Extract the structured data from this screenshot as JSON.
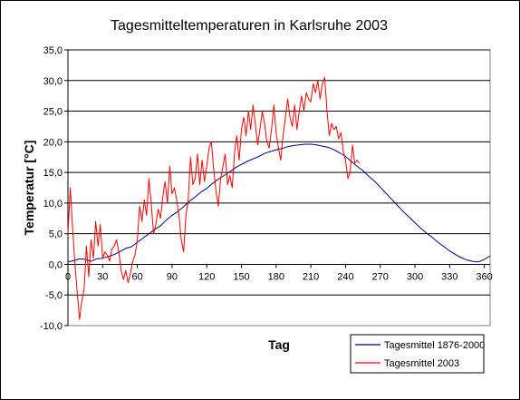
{
  "chart_data": {
    "type": "line",
    "title": "Tagesmitteltemperaturen in Karlsruhe 2003",
    "xlabel": "Tag",
    "ylabel": "Temperatur [°C]",
    "xlim": [
      0,
      365
    ],
    "ylim": [
      -10,
      35
    ],
    "x_ticks": [
      0,
      30,
      60,
      90,
      120,
      150,
      180,
      210,
      240,
      270,
      300,
      330,
      360
    ],
    "x_tick_labels": [
      "0",
      "30",
      "60",
      "90",
      "120",
      "150",
      "180",
      "210",
      "240",
      "270",
      "300",
      "330",
      "360"
    ],
    "y_ticks": [
      -10,
      -5,
      0,
      5,
      10,
      15,
      20,
      25,
      30,
      35
    ],
    "y_tick_labels": [
      "-10,0",
      "-5,0",
      "0,0",
      "5,0",
      "10,0",
      "15,0",
      "20,0",
      "25,0",
      "30,0",
      "35,0"
    ],
    "grid": "horizontal",
    "legend_position": "bottom-right",
    "series": [
      {
        "name": "Tagesmittel 1876-2000",
        "color": "#000080",
        "x": [
          0,
          5,
          10,
          15,
          20,
          25,
          30,
          35,
          40,
          45,
          50,
          55,
          60,
          65,
          70,
          75,
          80,
          85,
          90,
          95,
          100,
          105,
          110,
          115,
          120,
          125,
          130,
          135,
          140,
          145,
          150,
          155,
          160,
          165,
          170,
          175,
          180,
          185,
          190,
          195,
          200,
          205,
          210,
          215,
          220,
          225,
          230,
          235,
          240,
          245,
          250,
          255,
          260,
          265,
          270,
          275,
          280,
          285,
          290,
          295,
          300,
          305,
          310,
          315,
          320,
          325,
          330,
          335,
          340,
          345,
          350,
          355,
          360,
          365
        ],
        "y": [
          0.4,
          0.6,
          0.9,
          0.8,
          0.5,
          0.9,
          1.0,
          1.3,
          1.6,
          2.1,
          2.6,
          2.9,
          3.6,
          4.3,
          5.0,
          5.7,
          6.3,
          7.2,
          8.0,
          8.6,
          9.4,
          10.3,
          11.0,
          11.8,
          12.4,
          13.2,
          13.9,
          14.5,
          15.1,
          15.8,
          16.3,
          16.8,
          17.2,
          17.6,
          18.1,
          18.4,
          18.7,
          18.9,
          19.2,
          19.4,
          19.5,
          19.6,
          19.6,
          19.5,
          19.3,
          19.1,
          18.7,
          18.2,
          17.6,
          16.8,
          16.0,
          15.3,
          14.4,
          13.6,
          12.6,
          11.6,
          10.6,
          9.6,
          8.6,
          7.7,
          6.8,
          5.9,
          5.1,
          4.4,
          3.6,
          2.9,
          2.2,
          1.6,
          1.1,
          0.7,
          0.5,
          0.4,
          0.8,
          1.4
        ]
      },
      {
        "name": "Tagesmittel 2003",
        "color": "#ff0000",
        "x": [
          0,
          2,
          4,
          6,
          8,
          10,
          12,
          14,
          16,
          18,
          20,
          22,
          24,
          26,
          28,
          30,
          32,
          34,
          36,
          38,
          40,
          42,
          44,
          46,
          48,
          50,
          52,
          54,
          56,
          58,
          60,
          62,
          64,
          66,
          68,
          70,
          72,
          74,
          76,
          78,
          80,
          82,
          84,
          86,
          88,
          90,
          92,
          94,
          96,
          98,
          100,
          102,
          104,
          106,
          108,
          110,
          112,
          114,
          116,
          118,
          120,
          122,
          124,
          126,
          128,
          130,
          132,
          134,
          136,
          138,
          140,
          142,
          144,
          146,
          148,
          150,
          152,
          154,
          156,
          158,
          160,
          162,
          164,
          166,
          168,
          170,
          172,
          174,
          176,
          178,
          180,
          182,
          184,
          186,
          188,
          190,
          192,
          194,
          196,
          198,
          200,
          202,
          204,
          206,
          208,
          210,
          212,
          214,
          216,
          218,
          220,
          222,
          224,
          226,
          228,
          230,
          232,
          234,
          236,
          238,
          240,
          242,
          244,
          246,
          248,
          250,
          252
        ],
        "y": [
          5.0,
          12.5,
          6.0,
          0.0,
          -4.5,
          -9.0,
          -6.0,
          -4.0,
          3.0,
          -2.0,
          4.0,
          1.0,
          7.0,
          3.0,
          6.5,
          1.0,
          2.0,
          1.5,
          0.5,
          2.5,
          3.0,
          4.0,
          2.0,
          -1.0,
          -2.5,
          -1.0,
          -3.0,
          -1.5,
          0.5,
          1.5,
          4.0,
          9.5,
          7.0,
          10.5,
          8.0,
          14.0,
          10.0,
          5.0,
          6.5,
          9.0,
          7.5,
          11.0,
          13.5,
          10.0,
          16.0,
          11.5,
          12.5,
          10.5,
          8.0,
          4.0,
          2.0,
          8.0,
          10.5,
          17.5,
          13.0,
          14.0,
          18.0,
          13.0,
          17.0,
          13.5,
          16.0,
          19.0,
          20.0,
          15.5,
          12.0,
          9.5,
          14.0,
          16.0,
          18.0,
          13.0,
          14.5,
          12.5,
          18.0,
          21.0,
          17.0,
          22.0,
          24.0,
          21.0,
          25.0,
          22.0,
          26.0,
          23.0,
          19.5,
          22.0,
          25.0,
          23.0,
          20.0,
          19.0,
          22.0,
          26.0,
          21.5,
          19.0,
          17.0,
          21.0,
          24.0,
          27.0,
          24.0,
          22.5,
          26.0,
          22.0,
          25.0,
          27.5,
          25.0,
          28.0,
          27.0,
          26.5,
          29.5,
          28.0,
          30.0,
          27.0,
          29.5,
          30.5,
          25.0,
          21.0,
          23.0,
          22.0,
          22.5,
          20.5,
          21.5,
          18.5,
          17.0,
          14.0,
          15.0,
          19.5,
          16.5,
          17.0,
          16.5
        ]
      }
    ]
  }
}
